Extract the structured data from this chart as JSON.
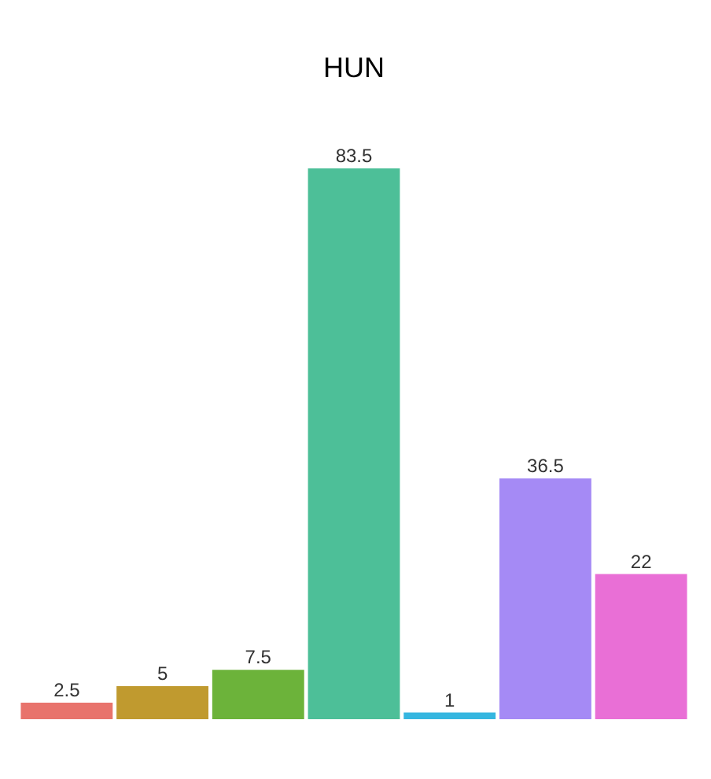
{
  "chart_data": {
    "type": "bar",
    "title": "HUN",
    "categories": [
      null,
      null,
      null,
      null,
      null,
      null,
      null
    ],
    "values": [
      2.5,
      5,
      7.5,
      83.5,
      1,
      36.5,
      22
    ],
    "colors": [
      "#e8736c",
      "#c09a2f",
      "#6cb33a",
      "#4dbf98",
      "#35b6e0",
      "#a58af5",
      "#e96fd6"
    ],
    "data_labels": true,
    "tick_labels": false
  }
}
